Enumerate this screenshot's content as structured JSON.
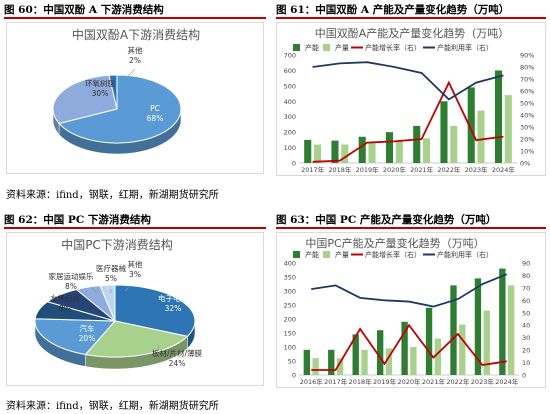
{
  "fig60": {
    "caption": "图 60：中国双酚 A 下游消费结构",
    "chart_data": {
      "type": "pie",
      "title": "中国双酚A下游消费结构",
      "categories": [
        "PC",
        "环氧树脂",
        "其他"
      ],
      "values": [
        68,
        30,
        2
      ],
      "value_labels": [
        "68%",
        "30%",
        "2%"
      ],
      "colors": [
        "#5b9bd5",
        "#8faadc",
        "#2e75b6"
      ]
    }
  },
  "fig61": {
    "caption": "图 61：中国双酚 A 产能及产量变化趋势（万吨）",
    "chart_data": {
      "type": "bar",
      "title": "中国双酚A产能及产量变化趋势（万吨）",
      "categories": [
        "2017年",
        "2018年",
        "2019年",
        "2020年",
        "2021年",
        "2022年",
        "2023年",
        "2024年"
      ],
      "left_ylim": [
        0,
        700
      ],
      "left_ticks": [
        "0",
        "100",
        "200",
        "300",
        "400",
        "500",
        "600",
        "700"
      ],
      "right_ylim": [
        0,
        90
      ],
      "right_ticks": [
        "0%",
        "10%",
        "20%",
        "30%",
        "40%",
        "50%",
        "60%",
        "70%",
        "80%",
        "90%"
      ],
      "series": [
        {
          "name": "产能",
          "kind": "bar",
          "axis": "left",
          "color": "#2e7d32",
          "values": [
            150,
            145,
            170,
            200,
            240,
            400,
            490,
            600
          ]
        },
        {
          "name": "产量",
          "kind": "bar",
          "axis": "left",
          "color": "#a9d18e",
          "values": [
            120,
            120,
            130,
            140,
            160,
            240,
            340,
            440
          ]
        },
        {
          "name": "产能增长率（右）",
          "kind": "line",
          "axis": "right",
          "color": "#c00000",
          "values": [
            1,
            2,
            17,
            18,
            20,
            67,
            19,
            22
          ]
        },
        {
          "name": "产能利用率（右）",
          "kind": "line",
          "axis": "right",
          "color": "#1f3864",
          "values": [
            80,
            83,
            84,
            80,
            75,
            53,
            67,
            73
          ]
        }
      ]
    }
  },
  "source1": "资料来源：ifind，钢联，红期，新湖期货研究所",
  "fig62": {
    "caption": "图 62：中国 PC 下游消费结构",
    "chart_data": {
      "type": "pie",
      "title": "中国PC下游消费结构",
      "categories": [
        "电子电器",
        "板材/片材/薄膜",
        "汽车",
        "水桶包装",
        "家居运动娱乐",
        "医疗器械",
        "其他"
      ],
      "values": [
        32,
        24,
        20,
        8,
        8,
        5,
        3
      ],
      "value_labels": [
        "32%",
        "24%",
        "20%",
        "8%",
        "8%",
        "5%",
        "3%"
      ],
      "colors": [
        "#2e75b6",
        "#a9d18e",
        "#5b9bd5",
        "#1f4e79",
        "#264478",
        "#8faadc",
        "#bdd7ee"
      ]
    }
  },
  "fig63": {
    "caption": "图 63：中国 PC 产能及产量变化趋势（万吨）",
    "chart_data": {
      "type": "bar",
      "title": "中国PC产能及产量变化趋势（万吨）",
      "categories": [
        "2016年",
        "2017年",
        "2018年",
        "2019年",
        "2020年",
        "2021年",
        "2022年",
        "2023年",
        "2024年"
      ],
      "left_ylim": [
        0,
        400
      ],
      "left_ticks": [
        "0",
        "50",
        "100",
        "150",
        "200",
        "250",
        "300",
        "350",
        "400"
      ],
      "right_ylim": [
        0,
        90
      ],
      "right_ticks": [
        "0",
        "10",
        "20",
        "30",
        "40",
        "50",
        "60",
        "70",
        "80",
        "90"
      ],
      "series": [
        {
          "name": "产能",
          "kind": "bar",
          "axis": "left",
          "color": "#2e7d32",
          "values": [
            90,
            90,
            145,
            160,
            190,
            240,
            320,
            345,
            380
          ]
        },
        {
          "name": "产量",
          "kind": "bar",
          "axis": "left",
          "color": "#a9d18e",
          "values": [
            60,
            60,
            90,
            95,
            100,
            130,
            180,
            230,
            320
          ]
        },
        {
          "name": "产能增长率（右）",
          "kind": "line",
          "axis": "right",
          "color": "#c00000",
          "values": [
            4,
            4,
            37,
            9,
            40,
            14,
            33,
            8,
            11
          ]
        },
        {
          "name": "产能利用率（右）",
          "kind": "line",
          "axis": "right",
          "color": "#1f3864",
          "values": [
            69,
            72,
            62,
            60,
            59,
            55,
            61,
            73,
            81
          ]
        }
      ]
    }
  },
  "source2": "资料来源：ifind，钢联，红期，新湖期货研究所"
}
